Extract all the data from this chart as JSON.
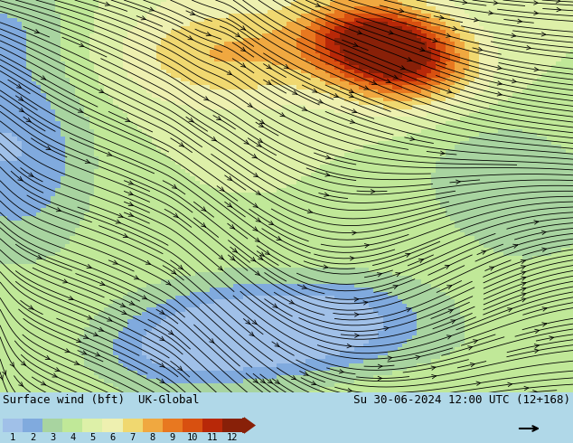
{
  "title_left": "Surface wind (bft)  UK-Global",
  "title_right": "Su 30-06-2024 12:00 UTC (12+168)",
  "colorbar_labels": [
    "1",
    "2",
    "3",
    "4",
    "5",
    "6",
    "7",
    "8",
    "9",
    "10",
    "11",
    "12"
  ],
  "colorbar_colors": [
    "#a0c0e8",
    "#80aade",
    "#a8d4a0",
    "#c0e898",
    "#ddf0a8",
    "#eef0b0",
    "#f0d870",
    "#f0a840",
    "#e87820",
    "#d85010",
    "#b82808",
    "#882008"
  ],
  "bg_color": "#b0d8e8",
  "wind_arrow_color": "#000000",
  "label_fontsize": 9,
  "title_fontsize": 9,
  "figsize": [
    6.34,
    4.9
  ],
  "dpi": 100
}
